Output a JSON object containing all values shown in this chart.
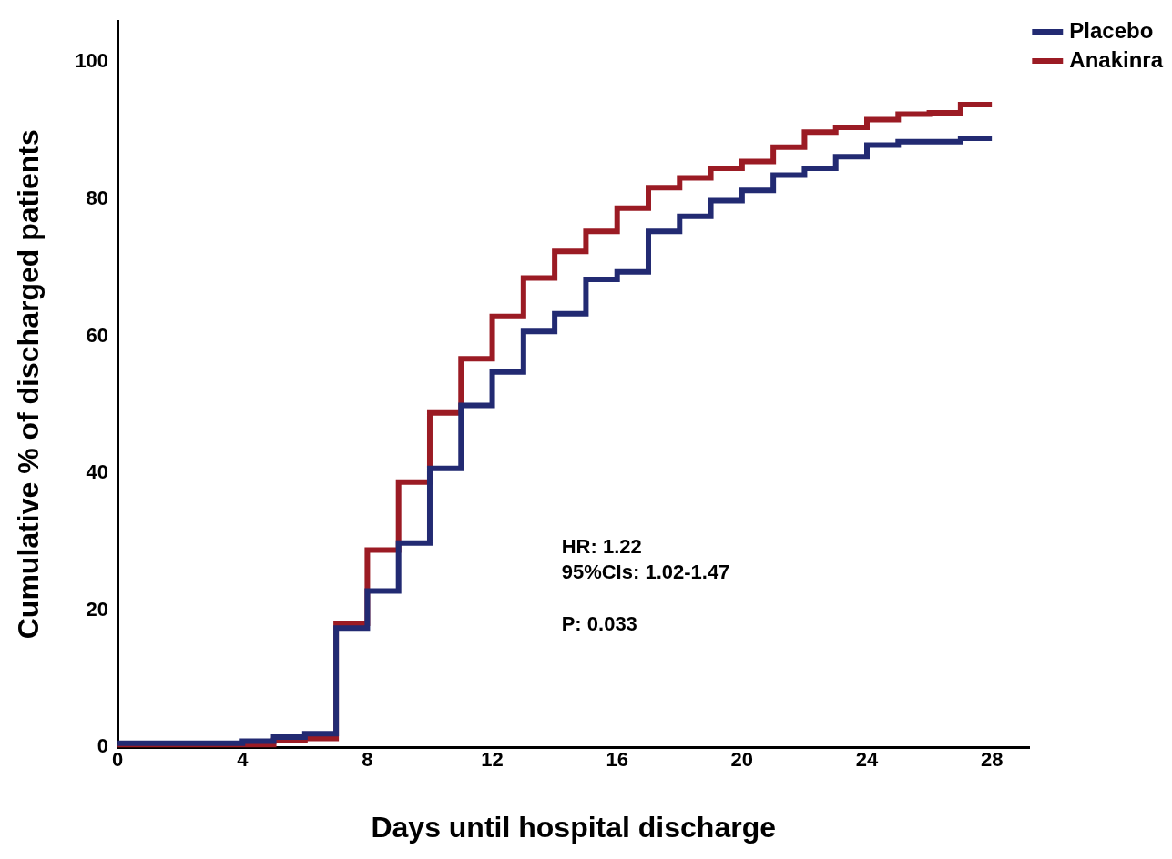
{
  "chart_data": {
    "type": "step",
    "xlabel": "Days until hospital discharge",
    "ylabel": "Cumulative % of discharged patients",
    "x": [
      0,
      4,
      5,
      6,
      7,
      8,
      9,
      10,
      11,
      12,
      13,
      14,
      15,
      16,
      17,
      18,
      19,
      20,
      21,
      22,
      23,
      24,
      25,
      26,
      27,
      28
    ],
    "series": [
      {
        "name": "Placebo",
        "color": "#222a72",
        "values": [
          0.6,
          0.9,
          1.5,
          2.0,
          17.4,
          22.8,
          29.8,
          40.7,
          49.9,
          54.8,
          60.7,
          63.3,
          68.3,
          69.4,
          75.3,
          77.5,
          79.8,
          81.3,
          83.5,
          84.5,
          86.2,
          87.9,
          88.4,
          88.4,
          88.9,
          88.9
        ]
      },
      {
        "name": "Anakinra",
        "color": "#9b1b24",
        "values": [
          0,
          0.3,
          1.0,
          1.3,
          18.1,
          28.8,
          38.7,
          48.8,
          56.7,
          62.9,
          68.5,
          72.4,
          75.3,
          78.7,
          81.7,
          83.1,
          84.5,
          85.5,
          87.6,
          89.8,
          90.5,
          91.6,
          92.4,
          92.6,
          93.8,
          93.8
        ]
      }
    ],
    "xlim": [
      0,
      29.2
    ],
    "xticks": [
      0,
      4,
      8,
      12,
      16,
      20,
      24,
      28
    ],
    "ylim": [
      0,
      106
    ],
    "yticks": [
      0,
      20,
      40,
      60,
      80,
      100
    ],
    "grid": false,
    "legend": "top right",
    "marker": "none",
    "line_style": "solid",
    "annotations": [
      "HR: 1.22",
      "95%CIs: 1.02-1.47",
      "P: 0.033"
    ]
  }
}
